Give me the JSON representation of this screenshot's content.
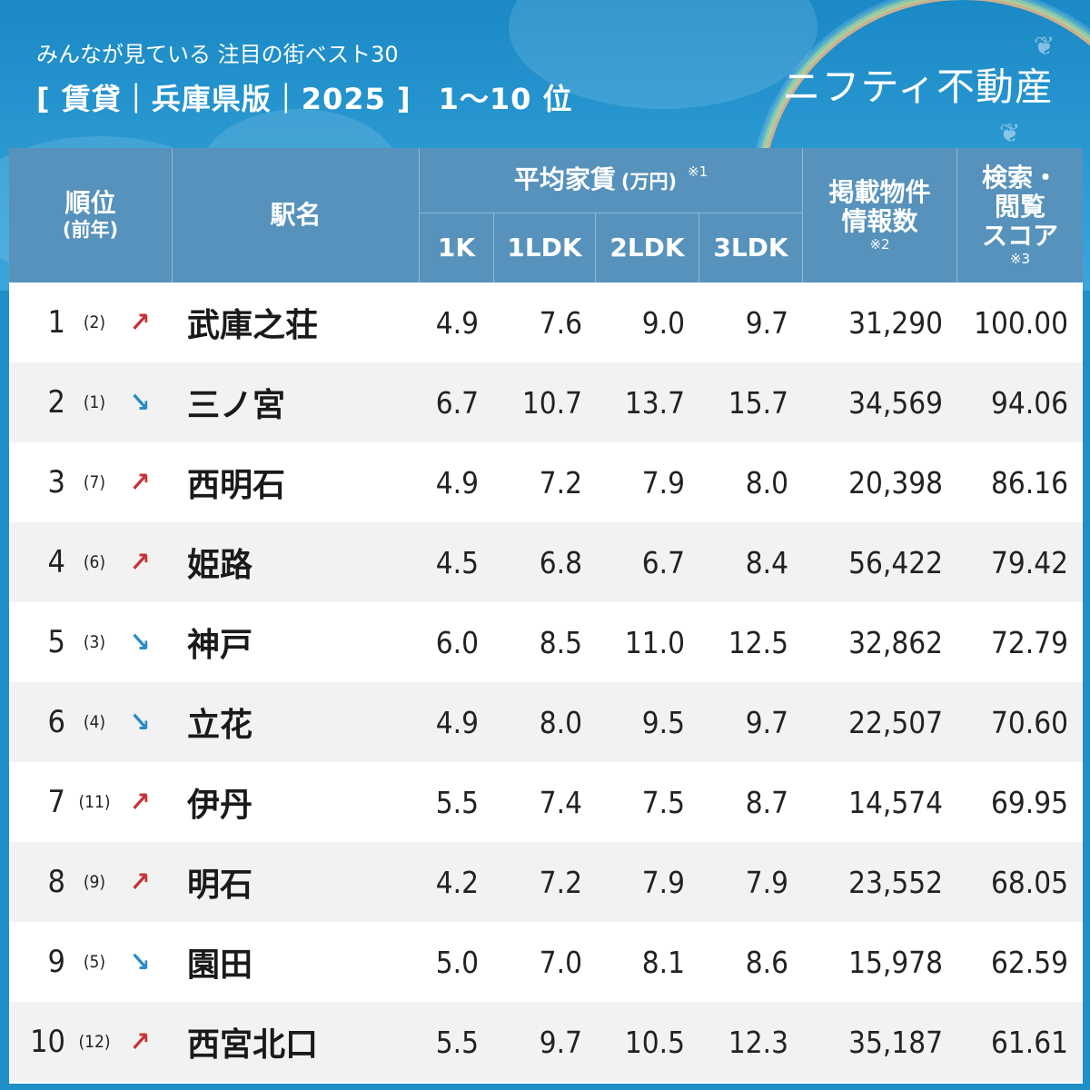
{
  "header": {
    "subtitle": "みんなが見ている 注目の街ベスト30",
    "title": "[ 賃貸｜兵庫県版｜2025 ]",
    "rank_range": "1〜10 位",
    "brand": "ニフティ不動産"
  },
  "columns": {
    "rank": "順位",
    "rank_sub": "(前年)",
    "station": "駅名",
    "rent": "平均家賃",
    "rent_unit": "(万円)",
    "rent_note": "※1",
    "k1": "1K",
    "ldk1": "1LDK",
    "ldk2": "2LDK",
    "ldk3": "3LDK",
    "count_line1": "掲載物件",
    "count_line2": "情報数",
    "count_note": "※2",
    "score_line1": "検索・",
    "score_line2": "閲覧",
    "score_line3": "スコア",
    "score_note": "※3"
  },
  "rows": [
    {
      "rank": "1",
      "prev": "(2)",
      "trend": "up",
      "station": "武庫之荘",
      "k1": "4.9",
      "ldk1": "7.6",
      "ldk2": "9.0",
      "ldk3": "9.7",
      "count": "31,290",
      "score": "100.00"
    },
    {
      "rank": "2",
      "prev": "(1)",
      "trend": "down",
      "station": "三ノ宮",
      "k1": "6.7",
      "ldk1": "10.7",
      "ldk2": "13.7",
      "ldk3": "15.7",
      "count": "34,569",
      "score": "94.06"
    },
    {
      "rank": "3",
      "prev": "(7)",
      "trend": "up",
      "station": "西明石",
      "k1": "4.9",
      "ldk1": "7.2",
      "ldk2": "7.9",
      "ldk3": "8.0",
      "count": "20,398",
      "score": "86.16"
    },
    {
      "rank": "4",
      "prev": "(6)",
      "trend": "up",
      "station": "姫路",
      "k1": "4.5",
      "ldk1": "6.8",
      "ldk2": "6.7",
      "ldk3": "8.4",
      "count": "56,422",
      "score": "79.42"
    },
    {
      "rank": "5",
      "prev": "(3)",
      "trend": "down",
      "station": "神戸",
      "k1": "6.0",
      "ldk1": "8.5",
      "ldk2": "11.0",
      "ldk3": "12.5",
      "count": "32,862",
      "score": "72.79"
    },
    {
      "rank": "6",
      "prev": "(4)",
      "trend": "down",
      "station": "立花",
      "k1": "4.9",
      "ldk1": "8.0",
      "ldk2": "9.5",
      "ldk3": "9.7",
      "count": "22,507",
      "score": "70.60"
    },
    {
      "rank": "7",
      "prev": "(11)",
      "trend": "up",
      "station": "伊丹",
      "k1": "5.5",
      "ldk1": "7.4",
      "ldk2": "7.5",
      "ldk3": "8.7",
      "count": "14,574",
      "score": "69.95"
    },
    {
      "rank": "8",
      "prev": "(9)",
      "trend": "up",
      "station": "明石",
      "k1": "4.2",
      "ldk1": "7.2",
      "ldk2": "7.9",
      "ldk3": "7.9",
      "count": "23,552",
      "score": "68.05"
    },
    {
      "rank": "9",
      "prev": "(5)",
      "trend": "down",
      "station": "園田",
      "k1": "5.0",
      "ldk1": "7.0",
      "ldk2": "8.1",
      "ldk3": "8.6",
      "count": "15,978",
      "score": "62.59"
    },
    {
      "rank": "10",
      "prev": "(12)",
      "trend": "up",
      "station": "西宮北口",
      "k1": "5.5",
      "ldk1": "9.7",
      "ldk2": "10.5",
      "ldk3": "12.3",
      "count": "35,187",
      "score": "61.61"
    }
  ],
  "colors": {
    "up_arrow": "#c43535",
    "down_arrow": "#2a8cc4",
    "header_bg": "#1f8fc8"
  }
}
